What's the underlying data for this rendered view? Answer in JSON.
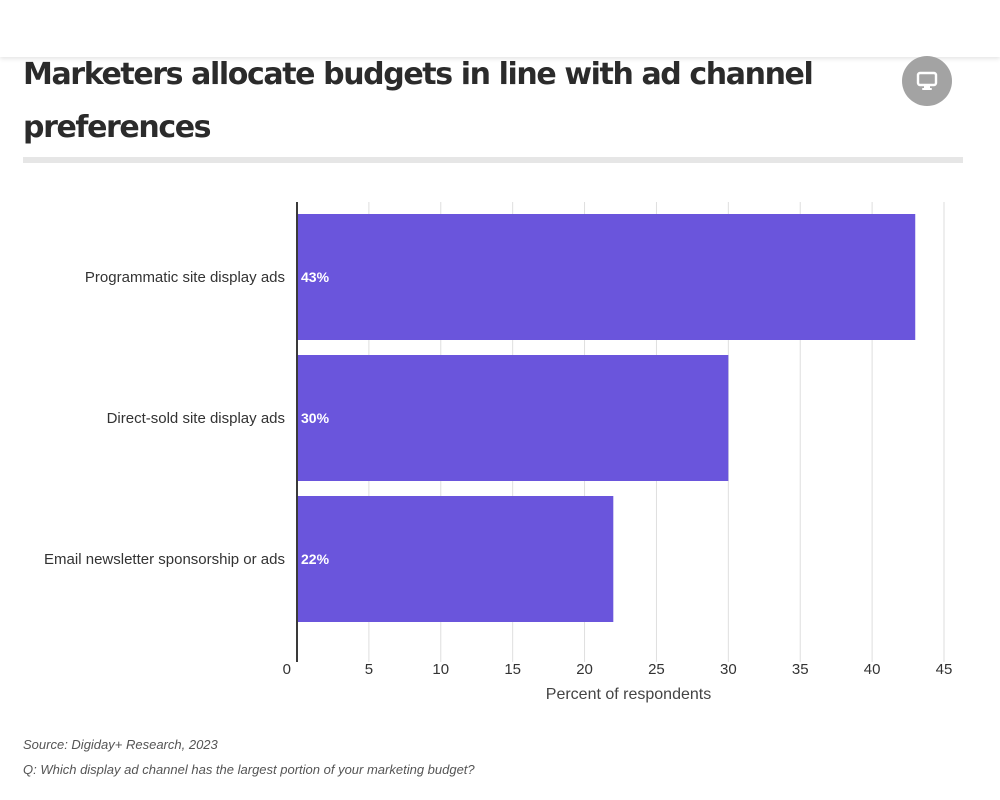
{
  "title": "Marketers allocate budgets in line with ad channel preferences",
  "icons": {
    "display_toggle": "monitor-icon"
  },
  "colors": {
    "bar": "#6a55dc",
    "bar_label": "#ffffff",
    "grid": "#dedede",
    "axis": "#3a3a3a",
    "text": "#333333",
    "toggle_bg": "#a3a3a3",
    "rule": "#e6e6e6"
  },
  "chart_data": {
    "type": "bar",
    "orientation": "horizontal",
    "categories": [
      "Programmatic site display ads",
      "Direct-sold site display ads",
      "Email newsletter sponsorship or ads"
    ],
    "values": [
      43,
      30,
      22
    ],
    "value_labels": [
      "43%",
      "30%",
      "22%"
    ],
    "xlabel": "Percent of respondents",
    "ylabel": "",
    "xlim": [
      0,
      45
    ],
    "xticks": [
      0,
      5,
      10,
      15,
      20,
      25,
      30,
      35,
      40,
      45
    ],
    "xtick_labels": [
      "0",
      "5",
      "10",
      "15",
      "20",
      "25",
      "30",
      "35",
      "40",
      "45"
    ],
    "grid": true,
    "legend": "none"
  },
  "footer": {
    "source": "Source: Digiday+ Research, 2023",
    "question": "Q: Which display ad channel has the largest portion of your marketing budget?"
  }
}
